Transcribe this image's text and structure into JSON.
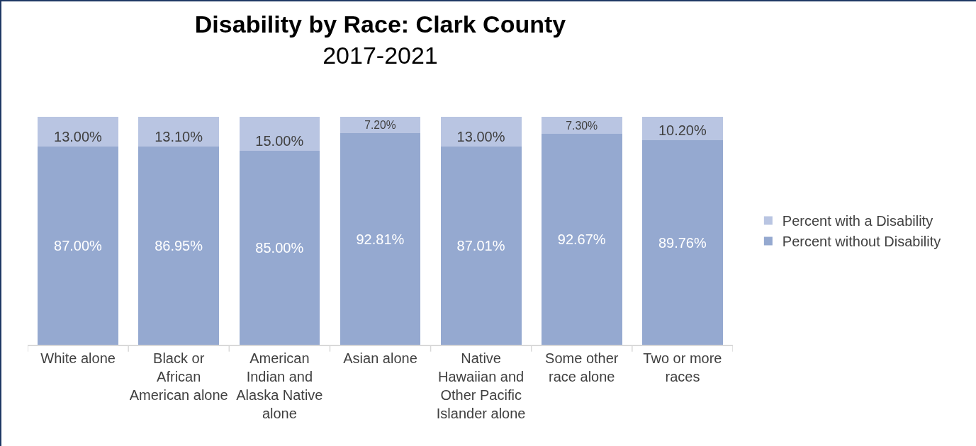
{
  "chart_data": {
    "type": "bar",
    "title": "Disability by Race: Clark County",
    "subtitle": "2017-2021",
    "stacked": true,
    "legend": "right",
    "tick_labels": "x",
    "grid": false,
    "ylim": [
      0,
      100.05
    ],
    "categories": [
      "White alone",
      "Black or African American alone",
      "American Indian and Alaska Native alone",
      "Asian alone",
      "Native Hawaiian and Other Pacific Islander alone",
      "Some other race alone",
      "Two or more races"
    ],
    "series": [
      {
        "name": "Percent without Disability",
        "color": "#95a9d0",
        "values": [
          87.0,
          86.95,
          85.0,
          92.81,
          87.01,
          92.67,
          89.76
        ],
        "value_labels": [
          "87.00%",
          "86.95%",
          "85.00%",
          "92.81%",
          "87.01%",
          "92.67%",
          "89.76%"
        ]
      },
      {
        "name": "Percent with a Disability",
        "color": "#b9c5e2",
        "values": [
          13.0,
          13.1,
          15.0,
          7.2,
          13.0,
          7.3,
          10.2
        ],
        "value_labels": [
          "13.00%",
          "13.10%",
          "15.00%",
          "7.20%",
          "13.00%",
          "7.30%",
          "10.20%"
        ]
      }
    ]
  }
}
